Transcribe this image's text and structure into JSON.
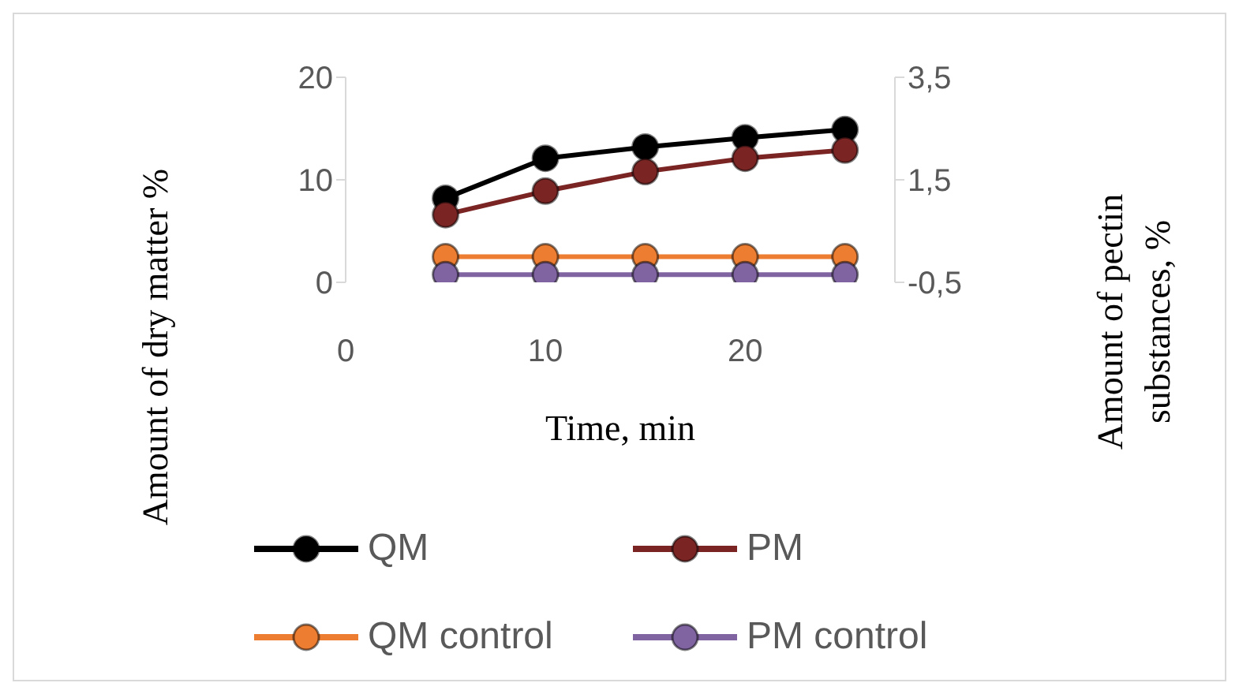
{
  "chart_data": {
    "type": "line",
    "xlabel": "Time, min",
    "ylabel": "Amount of dry matter %",
    "y2label": "Amount of pectin substances, %",
    "x": [
      5,
      10,
      15,
      20,
      25
    ],
    "series": [
      {
        "name": "QM",
        "color": "#000000",
        "values": [
          8.2,
          12.1,
          13.2,
          14.1,
          14.9
        ]
      },
      {
        "name": "PM",
        "color": "#7b2424",
        "values": [
          6.6,
          8.9,
          10.8,
          12.1,
          12.9
        ]
      },
      {
        "name": "QM control",
        "color": "#ed7d31",
        "axis": "y2",
        "values": [
          0.0,
          0.0,
          0.0,
          0.0,
          0.0
        ]
      },
      {
        "name": "PM control",
        "color": "#8064a2",
        "axis": "y2",
        "values": [
          -0.35,
          -0.35,
          -0.35,
          -0.35,
          -0.35
        ]
      }
    ],
    "xlim": [
      0,
      27.5
    ],
    "xticks": [
      0,
      10,
      20
    ],
    "ylim": [
      0,
      20
    ],
    "yticks": [
      0,
      10,
      20
    ],
    "y2lim": [
      -0.5,
      3.5
    ],
    "y2ticks": [
      {
        "value": -0.5,
        "label": "-0,5"
      },
      {
        "value": 1.5,
        "label": "1,5"
      },
      {
        "value": 3.5,
        "label": "3,5"
      }
    ],
    "grid": false,
    "legend": "bottom",
    "marker": "circle",
    "line_style": "solid"
  }
}
